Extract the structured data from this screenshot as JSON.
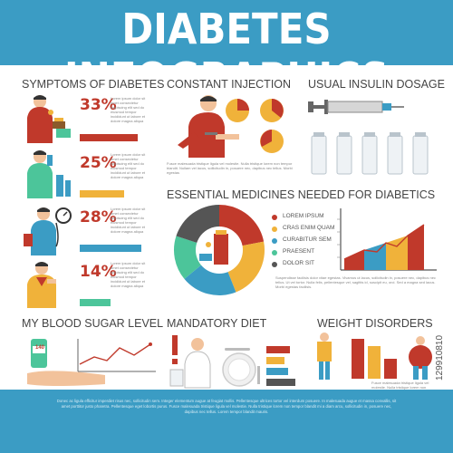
{
  "header": {
    "title": "DIABETES INFOGRAPHICS"
  },
  "symptoms": {
    "title": "SYMPTOMS OF DIABETES",
    "items": [
      {
        "percent": "33%",
        "color": "#c0392b",
        "bar_fraction": 0.85
      },
      {
        "percent": "25%",
        "color": "#f0b23a",
        "bar_fraction": 0.65
      },
      {
        "percent": "28%",
        "color": "#3b9cc4",
        "bar_fraction": 0.9
      },
      {
        "percent": "14%",
        "color": "#4cc59a",
        "bar_fraction": 0.45
      }
    ],
    "filler": "Lorem ipsum dolor sit amet consectetur adipiscing elit sed do eiusmod tempor incididunt ut labore et dolore magna aliqua"
  },
  "injection": {
    "title": "CONSTANT INJECTION",
    "filler": "Fusce malesuada tristique ligula vel molestie. Nulla tristique lorem non tempor blandit. Nullam vel lacus, sollicitudin in, posuere nec, dapibus nec tellus. Morbi egestas"
  },
  "insulin": {
    "title": "USUAL INSULIN DOSAGE"
  },
  "medicines": {
    "title": "ESSENTIAL MEDICINES NEEDED FOR DIABETICS",
    "legend": [
      {
        "label": "LOREM IPSUM",
        "color": "#c0392b"
      },
      {
        "label": "CRAS ENIM QUAM",
        "color": "#f0b23a"
      },
      {
        "label": "CURABITUR SEM",
        "color": "#3b9cc4"
      },
      {
        "label": "PRAESENT",
        "color": "#4cc59a"
      },
      {
        "label": "DOLOR SIT",
        "color": "#555555"
      }
    ],
    "filler": "Suspendisse facilisis dolor vitae egestas. Vivamus ut lacus, sollicitudin in, posuere nec, dapibus nec tellus. Ut vel tortor. Nulla felis, pellentesque vel, sagittis id, suscipit eu, orci. Sed a magna sed lacus. Morbi egestas facilisis."
  },
  "blood_sugar": {
    "title": "MY BLOOD SUGAR LEVEL",
    "reading": "140"
  },
  "diet": {
    "title": "MANDATORY DIET"
  },
  "weight": {
    "title": "WEIGHT DISORDERS",
    "filler": "Fusce malesuada tristique ligula vel molestie. Nulla tristique lorem non tempor blandit."
  },
  "footer": {
    "text": "Donec ac ligula efficitur imperdiet risus nec, sollicitudin sem. Integer elementum augue at feugiat mollis. Pellentesque ultrices tortor vel interdum posuere. In malesuada augue et massa convallis, sit amet porttitor justo pharetra. Pellentesque eget lobortis purus. Fusce malesuada tristique ligula vel molestie. Nulla tristique lorem non tempor blandit mi a diam arcu, sollicitudin in, posuere nec, dapibus nec tellus. Lorem tempor blandit mauris."
  },
  "watermark": "129910810",
  "colors": {
    "blue": "#3b9cc4",
    "red": "#c0392b",
    "orange": "#f0b23a",
    "green": "#4cc59a",
    "dark": "#555555"
  }
}
